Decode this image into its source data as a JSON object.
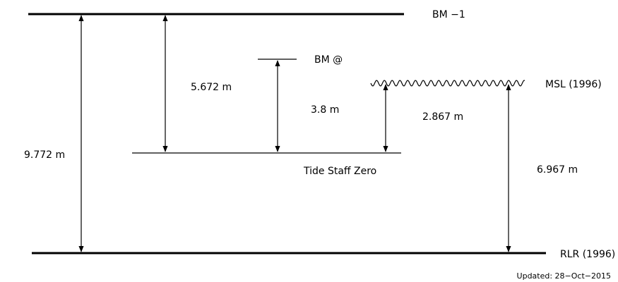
{
  "levels": {
    "bm1": "BM −1",
    "bm_at": "BM @",
    "msl": "MSL (1996)",
    "tide_staff_zero": "Tide Staff Zero",
    "rlr": "RLR (1996)"
  },
  "measurements": {
    "bm1_to_rlr": "9.772 m",
    "bm1_to_tsz": "5.672 m",
    "bm_at_to_tsz": "3.8 m",
    "msl_to_tsz": "2.867 m",
    "msl_to_rlr": "6.967 m"
  },
  "footer": {
    "updated": "Updated: 28−Oct−2015"
  }
}
